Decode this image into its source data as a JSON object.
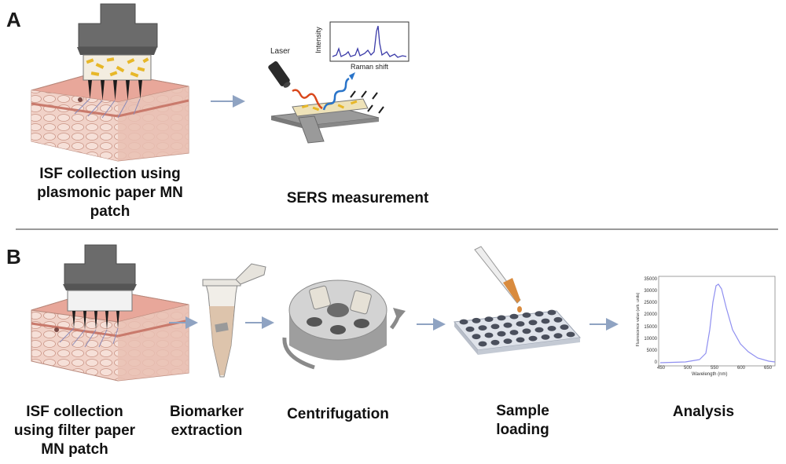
{
  "panel_a": {
    "letter": "A",
    "collection_caption_line1": "ISF collection using",
    "collection_caption_line2": "plasmonic paper MN",
    "collection_caption_line3": "patch",
    "measurement_caption": "SERS measurement",
    "laser_label": "Laser",
    "spectrum_y_label": "Intensity",
    "spectrum_x_label": "Raman shift"
  },
  "panel_b": {
    "letter": "B",
    "step1_line1": "ISF collection",
    "step1_line2": "using filter paper",
    "step1_line3": "MN patch",
    "step2_line1": "Biomarker",
    "step2_line2": "extraction",
    "step3": "Centrifugation",
    "step4_line1": "Sample",
    "step4_line2": "loading",
    "step5": "Analysis",
    "plot": {
      "y_label": "Fluorescence value (arb. units)",
      "x_label": "Wavelength (nm)",
      "y_ticks": [
        "35000",
        "30000",
        "25000",
        "20000",
        "15000",
        "10000",
        "5000",
        "0"
      ],
      "x_ticks": [
        "450",
        "500",
        "550",
        "600",
        "650"
      ]
    }
  },
  "colors": {
    "arrow": "#8fa3c2",
    "patch_gray": "#6b6b6b",
    "skin": "#e8b3a8",
    "laser_in": "#d9481c",
    "raman_out": "#2a74c9",
    "spectrum": "#3a3aa8",
    "fluorescence": "#8f8ff0"
  }
}
